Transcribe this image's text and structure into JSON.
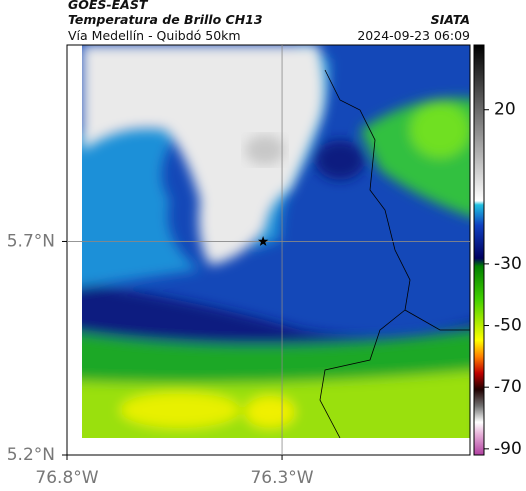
{
  "header": {
    "source": "GOES-EAST",
    "product": "Temperatura de Brillo CH13",
    "location": "Vía Medellín - Quibdó 50km",
    "agency": "SIATA",
    "timestamp": "2024-09-23 06:09"
  },
  "map": {
    "xlim": [
      -76.8,
      -75.863
    ],
    "ylim": [
      5.2,
      6.16
    ],
    "xticks": [
      {
        "value": -76.8,
        "label": "76.8°W"
      },
      {
        "value": -76.3,
        "label": "76.3°W"
      }
    ],
    "yticks": [
      {
        "value": 5.7,
        "label": "5.7°N"
      },
      {
        "value": 5.2,
        "label": "5.2°N"
      }
    ],
    "marker": {
      "lon": -76.344,
      "lat": 5.7
    }
  },
  "colorbar": {
    "lim": [
      -92,
      41
    ],
    "ticks": [
      20,
      -30,
      -50,
      -70,
      -90
    ]
  }
}
